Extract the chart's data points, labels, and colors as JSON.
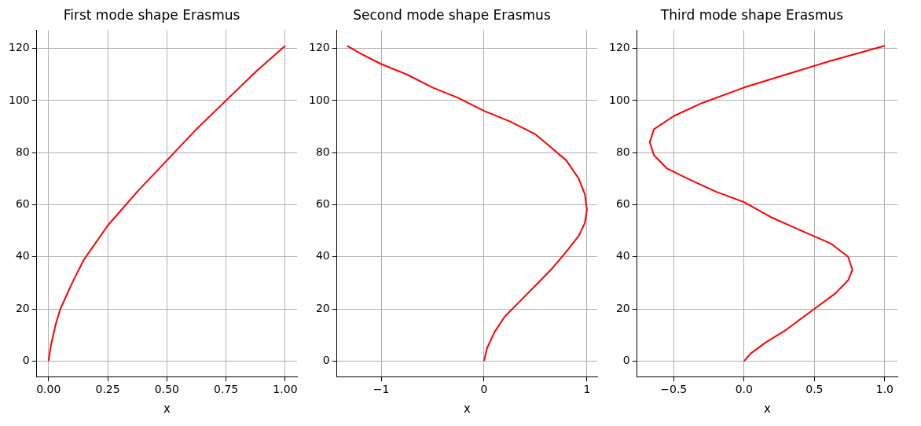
{
  "chart_data": [
    {
      "type": "line",
      "title": "First mode shape Erasmus",
      "xlabel": "x",
      "grid": true,
      "legend": false,
      "xlim": [
        -0.05,
        1.05
      ],
      "xticks": [
        {
          "value": 0,
          "label": "0.00"
        },
        {
          "value": 0.25,
          "label": "0.25"
        },
        {
          "value": 0.5,
          "label": "0.50"
        },
        {
          "value": 0.75,
          "label": "0.75"
        },
        {
          "value": 1,
          "label": "1.00"
        }
      ],
      "ylim": [
        -6,
        127
      ],
      "yticks": [
        0,
        20,
        40,
        60,
        80,
        100,
        120
      ],
      "series": [
        {
          "color": "#ff0000",
          "x": [
            0,
            0.01,
            0.03,
            0.05,
            0.1,
            0.15,
            0.25,
            0.375,
            0.5,
            0.625,
            0.75,
            0.875,
            1
          ],
          "values": [
            0,
            6,
            14,
            20,
            30,
            39,
            52,
            65,
            77,
            89,
            100,
            111,
            121
          ]
        }
      ]
    },
    {
      "type": "line",
      "title": "Second mode shape Erasmus",
      "xlabel": "x",
      "grid": true,
      "legend": false,
      "xlim": [
        -1.43,
        1.1
      ],
      "xticks": [
        {
          "value": -1,
          "label": "−1"
        },
        0,
        1
      ],
      "ylim": [
        -6,
        127
      ],
      "yticks": [
        0,
        20,
        40,
        60,
        80,
        100,
        120
      ],
      "series": [
        {
          "color": "#ff0000",
          "x": [
            0,
            0.03,
            0.1,
            0.2,
            0.35,
            0.5,
            0.65,
            0.8,
            0.92,
            0.98,
            1.0,
            0.98,
            0.92,
            0.8,
            0.65,
            0.5,
            0.25,
            0,
            -0.25,
            -0.5,
            -0.75,
            -1,
            -1.2,
            -1.33
          ],
          "values": [
            0,
            5,
            11,
            17,
            23,
            29,
            35,
            42,
            48,
            53,
            58,
            64,
            70,
            77,
            82,
            87,
            92,
            96,
            101,
            105,
            110,
            114,
            118,
            121
          ]
        }
      ]
    },
    {
      "type": "line",
      "title": "Third mode shape Erasmus",
      "xlabel": "x",
      "grid": true,
      "legend": false,
      "xlim": [
        -0.76,
        1.09
      ],
      "xticks": [
        {
          "value": -0.5,
          "label": "−0.5"
        },
        {
          "value": 0,
          "label": "0.0"
        },
        {
          "value": 0.5,
          "label": "0.5"
        },
        {
          "value": 1,
          "label": "1.0"
        }
      ],
      "ylim": [
        -6,
        127
      ],
      "yticks": [
        0,
        20,
        40,
        60,
        80,
        100,
        120
      ],
      "series": [
        {
          "color": "#ff0000",
          "x": [
            0,
            0.05,
            0.15,
            0.3,
            0.5,
            0.65,
            0.74,
            0.77,
            0.74,
            0.62,
            0.45,
            0.2,
            0,
            -0.2,
            -0.4,
            -0.55,
            -0.64,
            -0.67,
            -0.64,
            -0.5,
            -0.3,
            0,
            0.3,
            0.6,
            0.8,
            1.0
          ],
          "values": [
            0,
            3,
            7,
            12,
            20,
            26,
            31,
            35,
            40,
            45,
            49,
            55,
            61,
            65,
            70,
            74,
            79,
            84,
            89,
            94,
            99,
            105,
            110,
            115,
            118,
            121
          ]
        }
      ]
    }
  ]
}
